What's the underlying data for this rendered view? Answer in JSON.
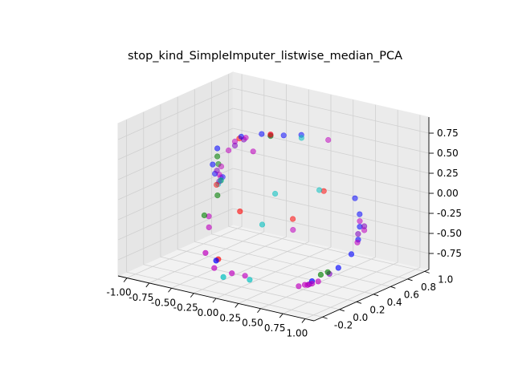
{
  "chart_data": {
    "type": "scatter",
    "projection": "3d",
    "title": "stop_kind_SimpleImputer_listwise_median_PCA",
    "xlabel": "",
    "ylabel": "",
    "zlabel": "",
    "xlim": [
      -1.1,
      1.1
    ],
    "ylim": [
      -0.3,
      1.05
    ],
    "zlim": [
      -0.95,
      0.95
    ],
    "x_ticks": [
      "-1.00",
      "-0.75",
      "-0.50",
      "-0.25",
      "0.00",
      "0.25",
      "0.50",
      "0.75",
      "1.00"
    ],
    "x_tick_values": [
      -1.0,
      -0.75,
      -0.5,
      -0.25,
      0.0,
      0.25,
      0.5,
      0.75,
      1.0
    ],
    "y_ticks": [
      "-0.2",
      "0.0",
      "0.2",
      "0.4",
      "0.6",
      "0.8",
      "1.0"
    ],
    "y_tick_values": [
      -0.2,
      0.0,
      0.2,
      0.4,
      0.6,
      0.8,
      1.0
    ],
    "z_ticks": [
      "-0.75",
      "-0.50",
      "-0.25",
      "0.00",
      "0.25",
      "0.50",
      "0.75"
    ],
    "z_tick_values": [
      -0.75,
      -0.5,
      -0.25,
      0.0,
      0.25,
      0.5,
      0.75
    ],
    "grid": true,
    "colors": {
      "red": "#ff0000",
      "green": "#008000",
      "blue": "#0000ff",
      "cyan": "#00bfbf",
      "magenta": "#bf00bf",
      "purple": "#7f00bf"
    },
    "series": [
      {
        "color": "#0000ff",
        "points": [
          [
            -0.9,
            0.72,
            -0.15
          ],
          [
            -0.92,
            0.65,
            -0.08
          ],
          [
            -0.85,
            0.55,
            0.1
          ],
          [
            -0.75,
            0.5,
            0.35
          ],
          [
            -0.5,
            0.52,
            0.55
          ],
          [
            -0.3,
            0.55,
            0.62
          ],
          [
            -0.1,
            0.6,
            0.63
          ],
          [
            0.05,
            0.65,
            0.65
          ],
          [
            0.7,
            0.6,
            0.05
          ],
          [
            0.8,
            0.55,
            -0.1
          ],
          [
            0.85,
            0.5,
            -0.22
          ],
          [
            0.88,
            0.45,
            -0.35
          ],
          [
            0.87,
            0.38,
            -0.5
          ],
          [
            0.8,
            0.3,
            -0.65
          ],
          [
            0.6,
            0.2,
            -0.82
          ],
          [
            -0.4,
            0.12,
            -0.78
          ]
        ]
      },
      {
        "color": "#bf00bf",
        "points": [
          [
            -0.95,
            0.75,
            -0.18
          ],
          [
            -0.9,
            0.68,
            -0.1
          ],
          [
            -0.82,
            0.62,
            0.05
          ],
          [
            -0.7,
            0.58,
            0.3
          ],
          [
            -0.6,
            0.55,
            0.45
          ],
          [
            -0.45,
            0.52,
            0.55
          ],
          [
            -0.2,
            0.55,
            0.63
          ],
          [
            0.4,
            0.6,
            0.7
          ],
          [
            -0.3,
            0.45,
            0.45
          ],
          [
            0.85,
            0.5,
            -0.15
          ],
          [
            0.9,
            0.5,
            -0.25
          ],
          [
            0.88,
            0.44,
            -0.38
          ],
          [
            0.5,
            0.22,
            -0.9
          ],
          [
            0.55,
            0.2,
            -0.88
          ],
          [
            0.6,
            0.2,
            -0.85
          ],
          [
            0.65,
            0.22,
            -0.82
          ],
          [
            0.45,
            0.2,
            -0.92
          ],
          [
            -0.5,
            0.1,
            -0.7
          ],
          [
            -0.45,
            0.15,
            -0.9
          ],
          [
            -0.3,
            0.2,
            -0.95
          ],
          [
            -0.2,
            0.25,
            -0.98
          ],
          [
            -0.7,
            0.35,
            -0.55
          ],
          [
            -0.75,
            0.4,
            -0.45
          ],
          [
            0.1,
            0.5,
            -0.45
          ]
        ]
      },
      {
        "color": "#7f00bf",
        "points": [
          [
            -0.6,
            0.55,
            0.4
          ],
          [
            -0.5,
            0.55,
            0.5
          ],
          [
            -0.85,
            0.6,
            0.0
          ],
          [
            -0.92,
            0.7,
            -0.2
          ],
          [
            0.9,
            0.5,
            -0.2
          ],
          [
            0.85,
            0.48,
            -0.3
          ],
          [
            0.7,
            0.3,
            -0.75
          ],
          [
            0.55,
            0.22,
            -0.88
          ]
        ]
      },
      {
        "color": "#008000",
        "points": [
          [
            -0.88,
            0.65,
            0.05
          ],
          [
            -0.75,
            0.5,
            0.25
          ],
          [
            -0.2,
            0.55,
            0.62
          ],
          [
            -0.92,
            0.72,
            -0.2
          ],
          [
            -0.7,
            0.45,
            -0.2
          ],
          [
            -0.8,
            0.4,
            -0.45
          ],
          [
            0.65,
            0.25,
            -0.75
          ],
          [
            0.7,
            0.28,
            -0.72
          ]
        ]
      },
      {
        "color": "#ff0000",
        "points": [
          [
            -0.55,
            0.55,
            0.5
          ],
          [
            -0.2,
            0.55,
            0.64
          ],
          [
            0.35,
            0.6,
            0.05
          ],
          [
            -0.95,
            0.7,
            -0.25
          ],
          [
            -0.5,
            0.25,
            -0.85
          ],
          [
            -0.4,
            0.4,
            -0.3
          ],
          [
            0.05,
            0.55,
            -0.35
          ]
        ]
      },
      {
        "color": "#00bfbf",
        "points": [
          [
            -0.95,
            0.72,
            -0.25
          ],
          [
            -0.9,
            0.7,
            -0.18
          ],
          [
            -0.3,
            0.1,
            -0.95
          ],
          [
            -0.1,
            0.2,
            -0.98
          ],
          [
            0.1,
            0.6,
            0.65
          ],
          [
            0.3,
            0.6,
            0.05
          ],
          [
            -0.1,
            0.5,
            -0.05
          ],
          [
            -0.15,
            0.4,
            -0.4
          ]
        ]
      }
    ]
  }
}
